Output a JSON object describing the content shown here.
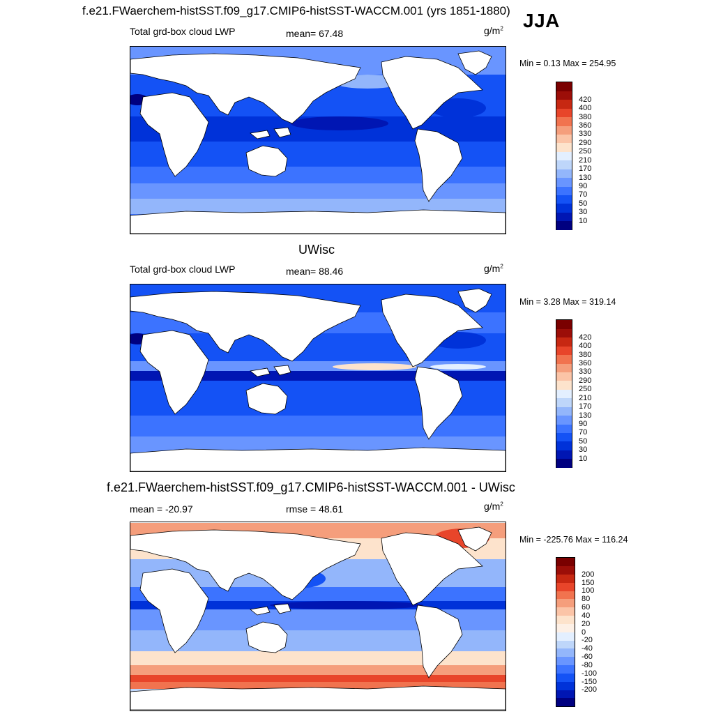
{
  "header": {
    "title": "f.e21.FWaerchem-histSST.f09_g17.CMIP6-histSST-WACCM.001 (yrs 1851-1880)",
    "season": "JJA"
  },
  "panels": [
    {
      "id": "panel1",
      "subtitle": "",
      "left_label": "Total grd-box cloud LWP",
      "center_label": "mean=  67.48",
      "units_base": "g/m",
      "units_exp": "2",
      "minmax": "Min =   0.13 Max = 254.95",
      "colorbar_colors": [
        "#000080",
        "#0016b3",
        "#0032d9",
        "#1452f5",
        "#3c73ff",
        "#6995ff",
        "#93b6fb",
        "#bed6fa",
        "#e3efff",
        "#fde3cc",
        "#fbc4a7",
        "#f59e7c",
        "#f1734f",
        "#e8452a",
        "#c72812",
        "#9c0e08",
        "#7a0000"
      ],
      "colorbar_labels": [
        "420",
        "400",
        "380",
        "360",
        "330",
        "290",
        "250",
        "210",
        "170",
        "130",
        "90",
        "70",
        "50",
        "30",
        "10"
      ]
    },
    {
      "id": "panel2",
      "subtitle": "UWisc",
      "left_label": "Total grd-box cloud LWP",
      "center_label": "mean=  88.46",
      "units_base": "g/m",
      "units_exp": "2",
      "minmax": "Min =   3.28 Max = 319.14",
      "colorbar_colors": [
        "#000080",
        "#0016b3",
        "#0032d9",
        "#1452f5",
        "#3c73ff",
        "#6995ff",
        "#93b6fb",
        "#bed6fa",
        "#e3efff",
        "#fde3cc",
        "#fbc4a7",
        "#f59e7c",
        "#f1734f",
        "#e8452a",
        "#c72812",
        "#9c0e08",
        "#7a0000"
      ],
      "colorbar_labels": [
        "420",
        "400",
        "380",
        "360",
        "330",
        "290",
        "250",
        "210",
        "170",
        "130",
        "90",
        "70",
        "50",
        "30",
        "10"
      ]
    },
    {
      "id": "panel3",
      "subtitle": "f.e21.FWaerchem-histSST.f09_g17.CMIP6-histSST-WACCM.001 - UWisc",
      "left_label": "mean = -20.97",
      "center_label": "rmse =  48.61",
      "units_base": "g/m",
      "units_exp": "2",
      "minmax": "Min = -225.76 Max = 116.24",
      "colorbar_colors": [
        "#000080",
        "#0016b3",
        "#0032d9",
        "#1452f5",
        "#3c73ff",
        "#6995ff",
        "#93b6fb",
        "#bed6fa",
        "#e3efff",
        "#fdf0e6",
        "#fde3cc",
        "#fbc4a7",
        "#f59e7c",
        "#f1734f",
        "#e8452a",
        "#c72812",
        "#9c0e08",
        "#7a0000"
      ],
      "colorbar_labels": [
        "200",
        "150",
        "100",
        "80",
        "60",
        "40",
        "20",
        "0",
        "-20",
        "-40",
        "-60",
        "-80",
        "-100",
        "-150",
        "-200"
      ]
    }
  ]
}
